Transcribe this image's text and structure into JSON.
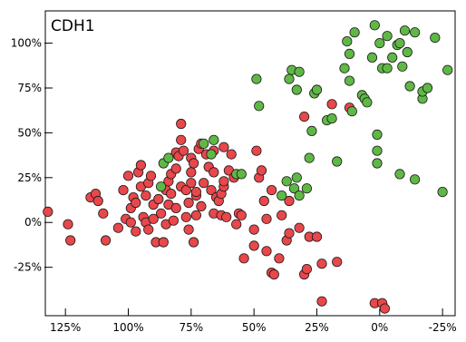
{
  "chart_data": {
    "type": "scatter",
    "title": "CDH1",
    "xlabel": "",
    "ylabel": "",
    "x_reversed": true,
    "xlim": [
      133,
      -30
    ],
    "ylim": [
      -52,
      118
    ],
    "x_ticks": [
      125,
      100,
      75,
      50,
      25,
      0,
      -25
    ],
    "x_tick_labels": [
      "125%",
      "100%",
      "75%",
      "50%",
      "25%",
      "0%",
      "-25%"
    ],
    "y_ticks": [
      100,
      75,
      50,
      25,
      0,
      -25
    ],
    "y_tick_labels": [
      "100%",
      "75%",
      "50%",
      "25%",
      "0%",
      "-25%"
    ],
    "grid": false,
    "legend": "none",
    "series": [
      {
        "color": "#e8474b",
        "points": [
          [
            132,
            6
          ],
          [
            124,
            -1
          ],
          [
            123,
            -10
          ],
          [
            115,
            14
          ],
          [
            113,
            16
          ],
          [
            112,
            12
          ],
          [
            110,
            5
          ],
          [
            109,
            -10
          ],
          [
            104,
            -3
          ],
          [
            102,
            18
          ],
          [
            101,
            2
          ],
          [
            100,
            26
          ],
          [
            99,
            8
          ],
          [
            99,
            0
          ],
          [
            98,
            14
          ],
          [
            97,
            11
          ],
          [
            97,
            -5
          ],
          [
            96,
            28
          ],
          [
            95,
            32
          ],
          [
            95,
            20
          ],
          [
            94,
            3
          ],
          [
            93,
            0
          ],
          [
            93,
            15
          ],
          [
            92,
            -4
          ],
          [
            92,
            22
          ],
          [
            91,
            26
          ],
          [
            90,
            10
          ],
          [
            90,
            2
          ],
          [
            89,
            -11
          ],
          [
            88,
            13
          ],
          [
            87,
            5
          ],
          [
            86,
            -11
          ],
          [
            85,
            18
          ],
          [
            85,
            -1
          ],
          [
            84,
            23
          ],
          [
            84,
            10
          ],
          [
            83,
            27
          ],
          [
            83,
            16
          ],
          [
            82,
            1
          ],
          [
            81,
            8
          ],
          [
            81,
            30
          ],
          [
            81,
            39
          ],
          [
            80,
            37
          ],
          [
            79,
            46
          ],
          [
            79,
            55
          ],
          [
            79,
            20
          ],
          [
            78,
            40
          ],
          [
            77,
            3
          ],
          [
            77,
            18
          ],
          [
            76,
            11
          ],
          [
            76,
            -4
          ],
          [
            75,
            28
          ],
          [
            75,
            22
          ],
          [
            75,
            36
          ],
          [
            74,
            33
          ],
          [
            74,
            -11
          ],
          [
            73,
            4
          ],
          [
            73,
            15
          ],
          [
            73,
            17
          ],
          [
            72,
            41
          ],
          [
            71,
            44
          ],
          [
            71,
            9
          ],
          [
            70,
            22
          ],
          [
            69,
            38
          ],
          [
            68,
            31
          ],
          [
            67,
            18
          ],
          [
            66,
            5
          ],
          [
            66,
            40
          ],
          [
            66,
            28
          ],
          [
            65,
            14
          ],
          [
            64,
            12
          ],
          [
            63,
            4
          ],
          [
            63,
            16
          ],
          [
            62,
            20
          ],
          [
            62,
            23
          ],
          [
            62,
            42
          ],
          [
            61,
            3
          ],
          [
            60,
            29
          ],
          [
            59,
            38
          ],
          [
            58,
            25
          ],
          [
            57,
            -1
          ],
          [
            56,
            5
          ],
          [
            55,
            4
          ],
          [
            54,
            -20
          ],
          [
            50,
            -13
          ],
          [
            50,
            -4
          ],
          [
            49,
            40
          ],
          [
            48,
            25
          ],
          [
            47,
            29
          ],
          [
            46,
            12
          ],
          [
            45,
            -16
          ],
          [
            45,
            2
          ],
          [
            43,
            18
          ],
          [
            43,
            -28
          ],
          [
            42,
            -29
          ],
          [
            40,
            -20
          ],
          [
            39,
            4
          ],
          [
            37,
            -10
          ],
          [
            36,
            -6
          ],
          [
            36,
            12
          ],
          [
            32,
            -3
          ],
          [
            30,
            -29
          ],
          [
            30,
            59
          ],
          [
            29,
            -26
          ],
          [
            28,
            -8
          ],
          [
            25,
            -8
          ],
          [
            23,
            -44
          ],
          [
            23,
            -23
          ],
          [
            19,
            66
          ],
          [
            17,
            -22
          ],
          [
            12,
            64
          ],
          [
            2,
            -45
          ],
          [
            -1,
            -45
          ],
          [
            -2,
            -48
          ]
        ]
      },
      {
        "color": "#5fb845",
        "points": [
          [
            87,
            20
          ],
          [
            86,
            33
          ],
          [
            84,
            36
          ],
          [
            70,
            44
          ],
          [
            67,
            38
          ],
          [
            66,
            46
          ],
          [
            57,
            27
          ],
          [
            55,
            27
          ],
          [
            49,
            80
          ],
          [
            48,
            65
          ],
          [
            39,
            15
          ],
          [
            37,
            23
          ],
          [
            36,
            80
          ],
          [
            35,
            85
          ],
          [
            34,
            19
          ],
          [
            33,
            25
          ],
          [
            33,
            74
          ],
          [
            32,
            84
          ],
          [
            32,
            15
          ],
          [
            29,
            19
          ],
          [
            28,
            36
          ],
          [
            27,
            51
          ],
          [
            26,
            72
          ],
          [
            25,
            74
          ],
          [
            21,
            57
          ],
          [
            19,
            58
          ],
          [
            17,
            34
          ],
          [
            14,
            86
          ],
          [
            13,
            101
          ],
          [
            12,
            94
          ],
          [
            12,
            79
          ],
          [
            11,
            62
          ],
          [
            10,
            106
          ],
          [
            7,
            71
          ],
          [
            6,
            69
          ],
          [
            5,
            67
          ],
          [
            3,
            92
          ],
          [
            1,
            49
          ],
          [
            1,
            40
          ],
          [
            1,
            33
          ],
          [
            2,
            110
          ],
          [
            0,
            100
          ],
          [
            -1,
            86
          ],
          [
            -3,
            104
          ],
          [
            -3,
            86
          ],
          [
            -5,
            92
          ],
          [
            -7,
            99
          ],
          [
            -8,
            100
          ],
          [
            -8,
            27
          ],
          [
            -9,
            87
          ],
          [
            -10,
            107
          ],
          [
            -11,
            95
          ],
          [
            -12,
            76
          ],
          [
            -14,
            106
          ],
          [
            -14,
            24
          ],
          [
            -17,
            69
          ],
          [
            -17,
            73
          ],
          [
            -19,
            75
          ],
          [
            -22,
            103
          ],
          [
            -25,
            17
          ],
          [
            -27,
            85
          ]
        ]
      }
    ]
  }
}
